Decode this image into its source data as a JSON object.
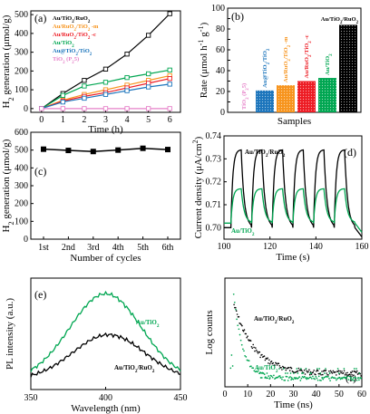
{
  "chart_data": [
    {
      "panel": "(a)",
      "type": "line",
      "xlabel": "Time (h)",
      "ylabel": "H2 generation (μmol/g)",
      "xlim": [
        -0.5,
        6.5
      ],
      "ylim": [
        -20,
        520
      ],
      "xticks": [
        "0",
        "1",
        "2",
        "3",
        "4",
        "5",
        "6"
      ],
      "yticks": [
        "0",
        "100",
        "200",
        "300",
        "400",
        "500"
      ],
      "x": [
        0,
        1,
        2,
        3,
        4,
        5,
        6
      ],
      "series": [
        {
          "name": "Au/TiO2/RuO2",
          "color": "#000000",
          "values": [
            0,
            80,
            150,
            210,
            290,
            390,
            505
          ]
        },
        {
          "name": "Au/RuO2/TiO2 -m",
          "color": "#f7941d",
          "values": [
            0,
            45,
            75,
            100,
            125,
            150,
            175
          ]
        },
        {
          "name": "Au/RuO2/TiO2 -c",
          "color": "#ed1c24",
          "values": [
            0,
            40,
            65,
            85,
            110,
            135,
            160
          ]
        },
        {
          "name": "Au/TiO2",
          "color": "#00a651",
          "values": [
            0,
            70,
            120,
            140,
            165,
            185,
            205
          ]
        },
        {
          "name": "Au@TiO2/TiO2",
          "color": "#1c75bc",
          "values": [
            0,
            35,
            55,
            75,
            95,
            115,
            130
          ]
        },
        {
          "name": "TiO2 (P25)",
          "color": "#e680c8",
          "values": [
            0,
            0,
            0,
            0,
            0,
            0,
            0
          ]
        }
      ]
    },
    {
      "panel": "(b)",
      "type": "bar",
      "xlabel": "Samples",
      "ylabel": "Rate (μmol h⁻¹ g⁻¹)",
      "ylim": [
        0,
        100
      ],
      "yticks": [
        "0",
        "10",
        "20",
        "30",
        "40",
        "50",
        "60",
        "70",
        "80",
        "90",
        "100"
      ],
      "categories": [
        "TiO2 (P25)",
        "Au@TiO2/TiO2",
        "Au/RuO2/TiO2 -m",
        "Au/RuO2/TiO2 -c",
        "Au/TiO2",
        "Au/TiO2/RuO2"
      ],
      "values": [
        0,
        21,
        26,
        30,
        33,
        84
      ],
      "colors": [
        "#e680c8",
        "#1c75bc",
        "#f7941d",
        "#ed1c24",
        "#00a651",
        "#000000"
      ]
    },
    {
      "panel": "(c)",
      "type": "line",
      "xlabel": "Number of cycles",
      "ylabel": "H2 generation (μmol/g)",
      "ylim": [
        0,
        600
      ],
      "yticks": [
        "0",
        "100",
        "200",
        "300",
        "400",
        "500",
        "600"
      ],
      "categories": [
        "1st",
        "2nd",
        "3rd",
        "4th",
        "5th",
        "6th"
      ],
      "values": [
        505,
        498,
        492,
        500,
        510,
        503
      ]
    },
    {
      "panel": "(d)",
      "type": "line",
      "xlabel": "Time (s)",
      "ylabel": "Current density (μA/cm²)",
      "xlim": [
        100,
        160
      ],
      "ylim": [
        0.695,
        0.74
      ],
      "xticks": [
        "100",
        "120",
        "140",
        "160"
      ],
      "yticks": [
        "0.70",
        "0.71",
        "0.72",
        "0.73",
        "0.74"
      ],
      "on_times": [
        103,
        112,
        121,
        130,
        139,
        148
      ],
      "series": [
        {
          "name": "Au/TiO2/RuO2",
          "color": "#000000",
          "base": 0.7,
          "peak": 0.734
        },
        {
          "name": "Au/TiO2",
          "color": "#00a651",
          "base": 0.702,
          "peak": 0.717
        }
      ]
    },
    {
      "panel": "(e)",
      "type": "line",
      "xlabel": "Wavelength (nm)",
      "ylabel": "PL intensity (a.u.)",
      "xlim": [
        350,
        450
      ],
      "xticks": [
        "350",
        "400",
        "450"
      ],
      "series": [
        {
          "name": "Au/TiO2",
          "color": "#00a651",
          "peak_x": 400,
          "peak_rel": 0.9
        },
        {
          "name": "Au/TiO2/RuO2",
          "color": "#000000",
          "peak_x": 402,
          "peak_rel": 0.5
        }
      ]
    },
    {
      "panel": "(f)",
      "type": "scatter",
      "xlabel": "Time (ns)",
      "ylabel": "Log counts",
      "xlim": [
        0,
        60
      ],
      "xticks": [
        "0",
        "10",
        "20",
        "30",
        "40",
        "50",
        "60"
      ],
      "series": [
        {
          "name": "Au/TiO2/RuO2",
          "color": "#000000"
        },
        {
          "name": "Au/TiO2",
          "color": "#00a651"
        }
      ]
    }
  ]
}
